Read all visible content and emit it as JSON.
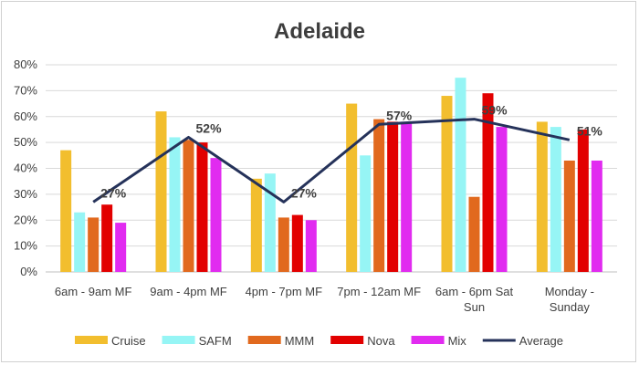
{
  "chart_data": {
    "type": "bar",
    "title": "Adelaide",
    "xlabel": "",
    "ylabel": "",
    "ylim": [
      0,
      80
    ],
    "y_ticks": [
      "0%",
      "10%",
      "20%",
      "30%",
      "40%",
      "50%",
      "60%",
      "70%",
      "80%"
    ],
    "grid": true,
    "legend_position": "bottom",
    "categories": [
      [
        "6am - 9am MF"
      ],
      [
        "9am - 4pm MF"
      ],
      [
        "4pm - 7pm MF"
      ],
      [
        "7pm - 12am MF"
      ],
      [
        "6am - 6pm Sat",
        "Sun"
      ],
      [
        "Monday -",
        "Sunday"
      ]
    ],
    "series": [
      {
        "name": "Cruise",
        "kind": "bar",
        "color": "#F2BE2E",
        "values": [
          47,
          62,
          36,
          65,
          68,
          58
        ]
      },
      {
        "name": "SAFM",
        "kind": "bar",
        "color": "#96F5F5",
        "values": [
          23,
          52,
          38,
          45,
          75,
          56
        ]
      },
      {
        "name": "MMM",
        "kind": "bar",
        "color": "#E1691E",
        "values": [
          21,
          51,
          21,
          59,
          29,
          43
        ]
      },
      {
        "name": "Nova",
        "kind": "bar",
        "color": "#E20000",
        "values": [
          26,
          50,
          22,
          58,
          69,
          55
        ]
      },
      {
        "name": "Mix",
        "kind": "bar",
        "color": "#E12BF0",
        "values": [
          19,
          44,
          20,
          58,
          56,
          43
        ]
      },
      {
        "name": "Average",
        "kind": "line",
        "color": "#25325A",
        "values": [
          27,
          52,
          27,
          57,
          59,
          51
        ]
      }
    ],
    "data_labels": [
      "27%",
      "52%",
      "27%",
      "57%",
      "59%",
      "51%"
    ]
  }
}
